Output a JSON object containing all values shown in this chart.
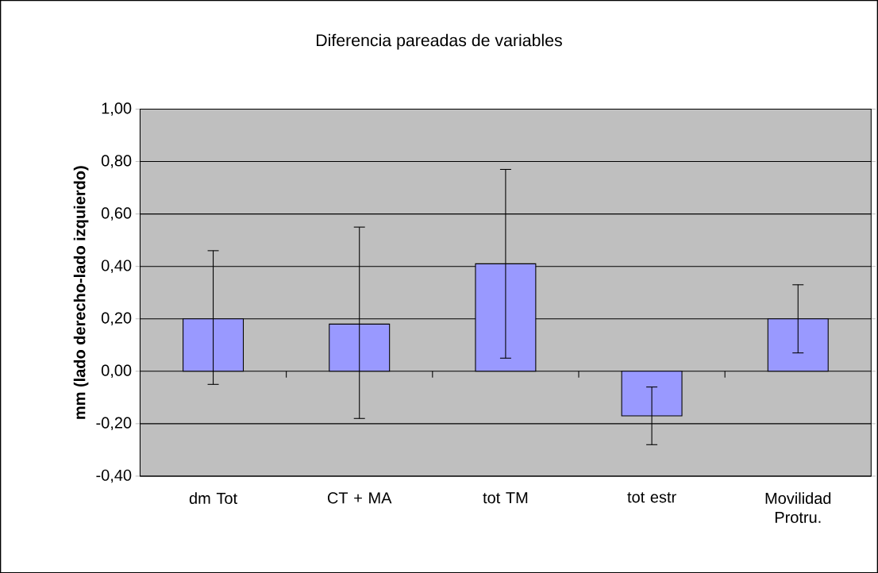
{
  "chart_data": {
    "type": "bar",
    "title": "Diferencia pareadas de  variables",
    "ylabel": "mm (lado derecho-lado izquierdo)",
    "categories": [
      "dm Tot",
      "CT + MA",
      "tot TM",
      "tot estr",
      "Movilidad Protru."
    ],
    "values": [
      0.2,
      0.18,
      0.41,
      -0.17,
      0.2
    ],
    "errors": [
      [
        -0.05,
        0.46
      ],
      [
        -0.18,
        0.55
      ],
      [
        0.05,
        0.77
      ],
      [
        -0.28,
        -0.06
      ],
      [
        0.07,
        0.33
      ]
    ],
    "color": "#9999ff",
    "ylim": [
      -0.4,
      1.0
    ],
    "yticks": [
      {
        "value": -0.4,
        "label": "-0,40"
      },
      {
        "value": -0.2,
        "label": "-0,20"
      },
      {
        "value": 0,
        "label": "0,00"
      },
      {
        "value": 0.2,
        "label": "0,20"
      },
      {
        "value": 0.4,
        "label": "0,40"
      },
      {
        "value": 0.6,
        "label": "0,60"
      },
      {
        "value": 0.8,
        "label": "0,80"
      },
      {
        "value": 1.0,
        "label": "1,00"
      }
    ],
    "grid": "y"
  }
}
